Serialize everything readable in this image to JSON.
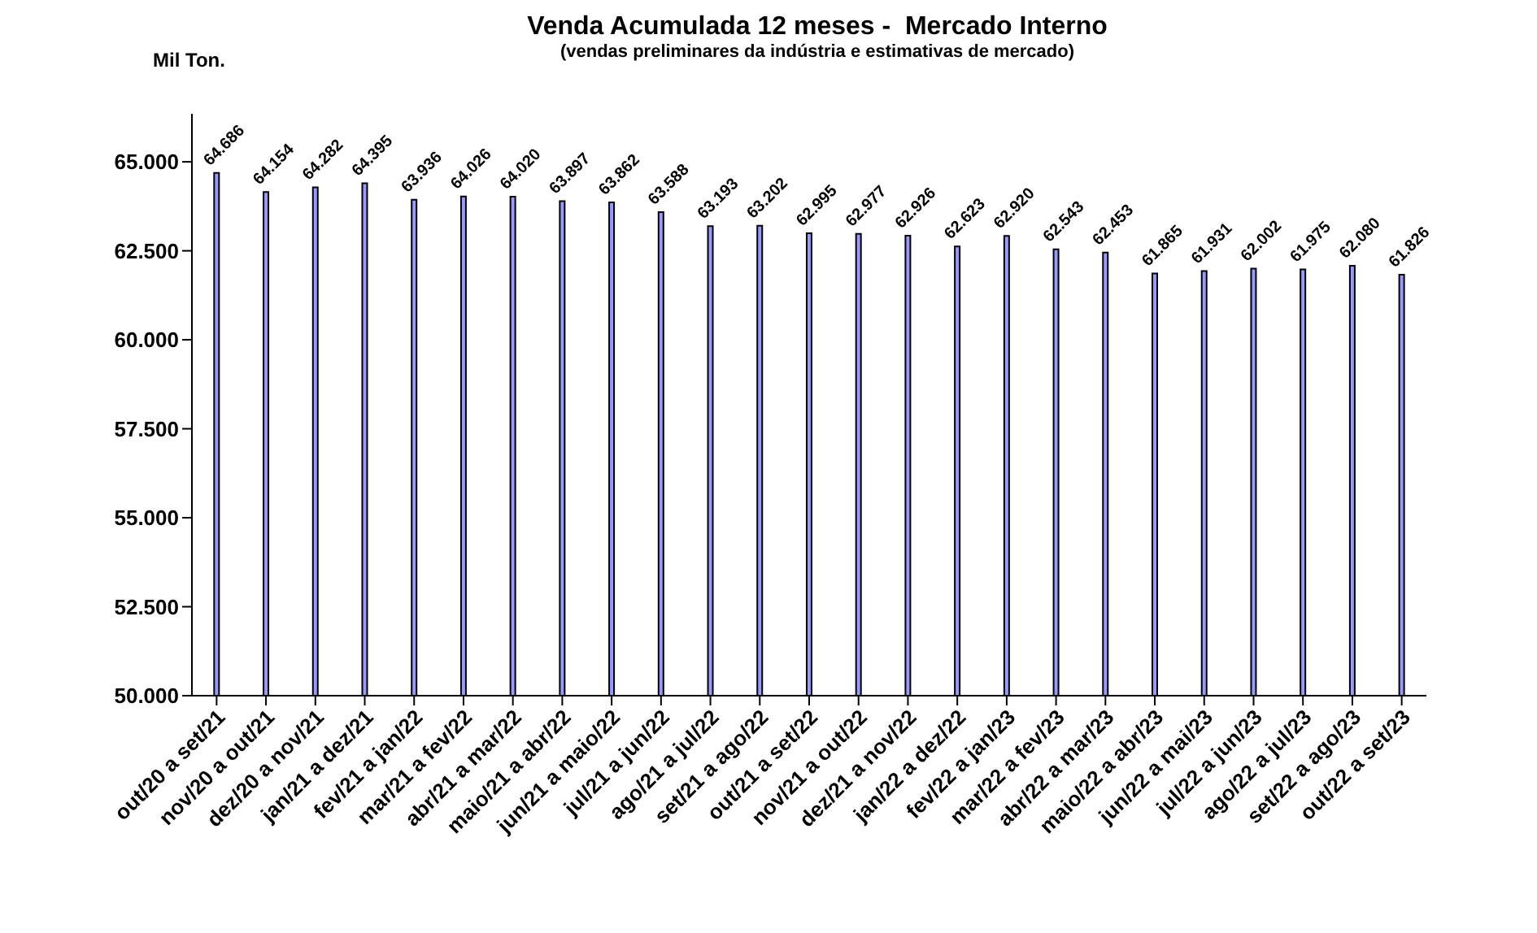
{
  "chart_data": {
    "type": "bar",
    "title": "Venda Acumulada 12 meses -  Mercado Interno",
    "subtitle": "(vendas preliminares da indústria e estimativas de mercado)",
    "ylabel": "Mil Ton.",
    "categories": [
      "out/20 a set/21",
      "nov/20 a out/21",
      "dez/20 a nov/21",
      "jan/21 a dez/21",
      "fev/21 a jan/22",
      "mar/21 a fev/22",
      "abr/21 a mar/22",
      "maio/21 a abr/22",
      "jun/21 a maio/22",
      "jul/21 a jun/22",
      "ago/21 a jul/22",
      "set/21 a ago/22",
      "out/21 a set/22",
      "nov/21 a out/22",
      "dez/21 a nov/22",
      "jan/22 a dez/22",
      "fev/22 a jan/23",
      "mar/22 a fev/23",
      "abr/22 a mar/23",
      "maio/22 a abr/23",
      "jun/22 a mai/23",
      "jul/22 a jun/23",
      "ago/22 a jul/23",
      "set/22 a ago/23",
      "out/22 a set/23"
    ],
    "values": [
      64686,
      64154,
      64282,
      64395,
      63936,
      64026,
      64020,
      63897,
      63862,
      63588,
      63193,
      63202,
      62995,
      62977,
      62926,
      62623,
      62920,
      62543,
      62453,
      61865,
      61931,
      62002,
      61975,
      62080,
      61826
    ],
    "value_labels": [
      "64.686",
      "64.154",
      "64.282",
      "64.395",
      "63.936",
      "64.026",
      "64.020",
      "63.897",
      "63.862",
      "63.588",
      "63.193",
      "63.202",
      "62.995",
      "62.977",
      "62.926",
      "62.623",
      "62.920",
      "62.543",
      "62.453",
      "61.865",
      "61.931",
      "62.002",
      "61.975",
      "62.080",
      "61.826"
    ],
    "color": "#9999ff",
    "ylim": [
      50000,
      66350
    ],
    "yticks": [
      {
        "value": 50000,
        "label": "50.000"
      },
      {
        "value": 52500,
        "label": "52.500"
      },
      {
        "value": 55000,
        "label": "55.000"
      },
      {
        "value": 57500,
        "label": "57.500"
      },
      {
        "value": 60000,
        "label": "60.000"
      },
      {
        "value": 62500,
        "label": "62.500"
      },
      {
        "value": 65000,
        "label": "65.000"
      }
    ]
  }
}
